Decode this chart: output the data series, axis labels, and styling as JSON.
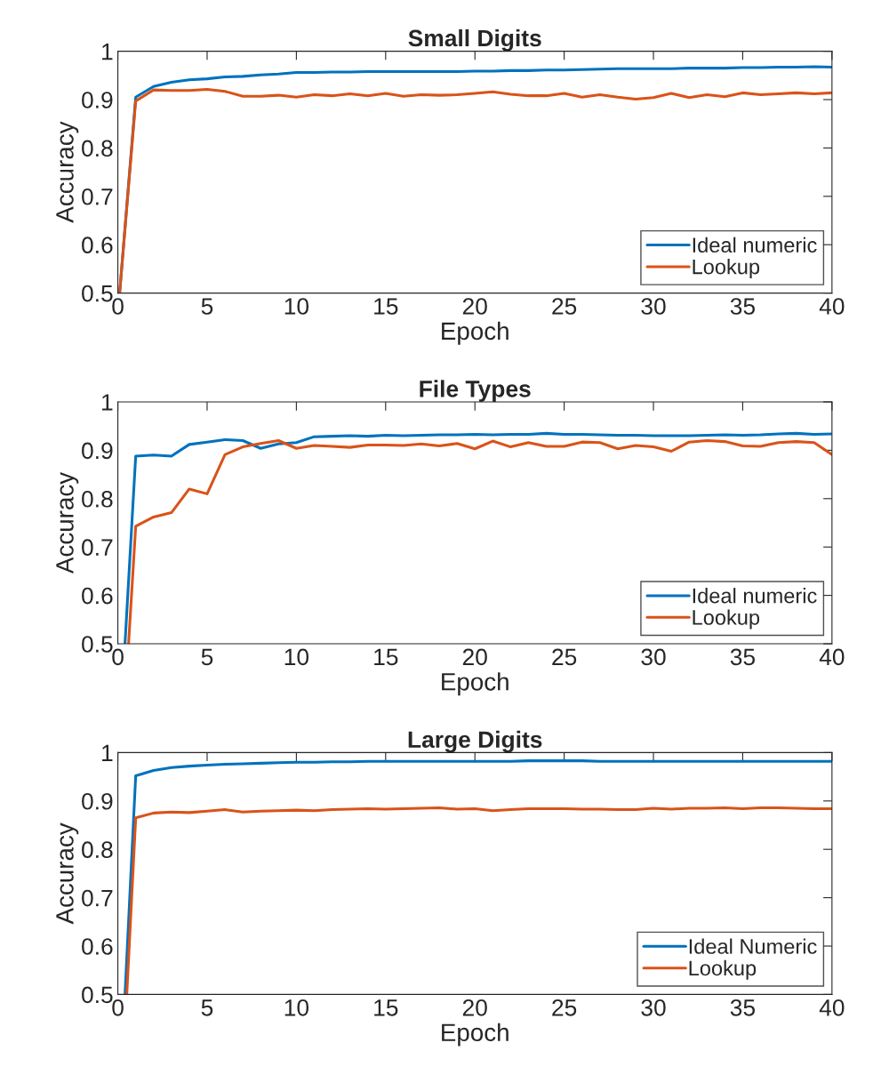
{
  "chart_data": [
    {
      "type": "line",
      "title": "Small Digits",
      "xlabel": "Epoch",
      "ylabel": "Accuracy",
      "xlim": [
        0,
        40
      ],
      "ylim": [
        0.5,
        1
      ],
      "xticks": [
        0,
        5,
        10,
        15,
        20,
        25,
        30,
        35,
        40
      ],
      "yticks": [
        0.5,
        0.6,
        0.7,
        0.8,
        0.9,
        1
      ],
      "grid": false,
      "legend": "bottom right",
      "series": [
        {
          "name": "Ideal numeric",
          "color": "#0072bd",
          "x": [
            0.1,
            1,
            2,
            3,
            4,
            5,
            6,
            7,
            8,
            9,
            10,
            11,
            12,
            13,
            14,
            15,
            16,
            17,
            18,
            19,
            20,
            21,
            22,
            23,
            24,
            25,
            26,
            27,
            28,
            29,
            30,
            31,
            32,
            33,
            34,
            35,
            36,
            37,
            38,
            39,
            40
          ],
          "values": [
            0.5,
            0.905,
            0.927,
            0.936,
            0.941,
            0.943,
            0.947,
            0.948,
            0.951,
            0.953,
            0.956,
            0.956,
            0.957,
            0.957,
            0.958,
            0.958,
            0.958,
            0.958,
            0.958,
            0.958,
            0.959,
            0.959,
            0.96,
            0.96,
            0.961,
            0.961,
            0.962,
            0.963,
            0.964,
            0.964,
            0.964,
            0.964,
            0.965,
            0.965,
            0.965,
            0.966,
            0.966,
            0.967,
            0.967,
            0.968,
            0.967
          ]
        },
        {
          "name": "Lookup",
          "color": "#d95319",
          "x": [
            0.1,
            1,
            2,
            3,
            4,
            5,
            6,
            7,
            8,
            9,
            10,
            11,
            12,
            13,
            14,
            15,
            16,
            17,
            18,
            19,
            20,
            21,
            22,
            23,
            24,
            25,
            26,
            27,
            28,
            29,
            30,
            31,
            32,
            33,
            34,
            35,
            36,
            37,
            38,
            39,
            40
          ],
          "values": [
            0.5,
            0.897,
            0.92,
            0.919,
            0.919,
            0.921,
            0.917,
            0.907,
            0.907,
            0.909,
            0.905,
            0.91,
            0.908,
            0.912,
            0.908,
            0.913,
            0.907,
            0.91,
            0.909,
            0.91,
            0.913,
            0.916,
            0.911,
            0.908,
            0.908,
            0.913,
            0.905,
            0.91,
            0.905,
            0.901,
            0.904,
            0.913,
            0.904,
            0.91,
            0.906,
            0.914,
            0.91,
            0.912,
            0.914,
            0.912,
            0.914
          ]
        }
      ]
    },
    {
      "type": "line",
      "title": "File Types",
      "xlabel": "Epoch",
      "ylabel": "Accuracy",
      "xlim": [
        0,
        40
      ],
      "ylim": [
        0.5,
        1
      ],
      "xticks": [
        0,
        5,
        10,
        15,
        20,
        25,
        30,
        35,
        40
      ],
      "yticks": [
        0.5,
        0.6,
        0.7,
        0.8,
        0.9,
        1
      ],
      "grid": false,
      "legend": "bottom right",
      "series": [
        {
          "name": "Ideal numeric",
          "color": "#0072bd",
          "x": [
            0.4,
            1,
            2,
            3,
            4,
            5,
            6,
            7,
            8,
            9,
            10,
            11,
            12,
            13,
            14,
            15,
            16,
            17,
            18,
            19,
            20,
            21,
            22,
            23,
            24,
            25,
            26,
            27,
            28,
            29,
            30,
            31,
            32,
            33,
            34,
            35,
            36,
            37,
            38,
            39,
            40
          ],
          "values": [
            0.5,
            0.888,
            0.89,
            0.888,
            0.912,
            0.917,
            0.922,
            0.92,
            0.904,
            0.913,
            0.916,
            0.928,
            0.929,
            0.93,
            0.929,
            0.931,
            0.93,
            0.931,
            0.932,
            0.932,
            0.933,
            0.932,
            0.933,
            0.933,
            0.935,
            0.933,
            0.933,
            0.932,
            0.931,
            0.931,
            0.93,
            0.93,
            0.93,
            0.931,
            0.932,
            0.931,
            0.932,
            0.934,
            0.935,
            0.933,
            0.934
          ]
        },
        {
          "name": "Lookup",
          "color": "#d95319",
          "x": [
            0.6,
            1,
            2,
            3,
            4,
            5,
            6,
            7,
            8,
            9,
            10,
            11,
            12,
            13,
            14,
            15,
            16,
            17,
            18,
            19,
            20,
            21,
            22,
            23,
            24,
            25,
            26,
            27,
            28,
            29,
            30,
            31,
            32,
            33,
            34,
            35,
            36,
            37,
            38,
            39,
            40
          ],
          "values": [
            0.5,
            0.743,
            0.762,
            0.771,
            0.82,
            0.81,
            0.891,
            0.907,
            0.914,
            0.92,
            0.904,
            0.91,
            0.908,
            0.906,
            0.911,
            0.911,
            0.91,
            0.913,
            0.909,
            0.914,
            0.903,
            0.919,
            0.907,
            0.916,
            0.908,
            0.908,
            0.917,
            0.916,
            0.903,
            0.91,
            0.907,
            0.898,
            0.917,
            0.92,
            0.918,
            0.909,
            0.908,
            0.916,
            0.918,
            0.916,
            0.891
          ]
        }
      ]
    },
    {
      "type": "line",
      "title": "Large Digits",
      "xlabel": "Epoch",
      "ylabel": "Accuracy",
      "xlim": [
        0,
        40
      ],
      "ylim": [
        0.5,
        1
      ],
      "xticks": [
        0,
        5,
        10,
        15,
        20,
        25,
        30,
        35,
        40
      ],
      "yticks": [
        0.5,
        0.6,
        0.7,
        0.8,
        0.9,
        1
      ],
      "grid": false,
      "legend": "bottom right",
      "series": [
        {
          "name": "Ideal Numeric",
          "color": "#0072bd",
          "x": [
            0.4,
            1,
            2,
            3,
            4,
            5,
            6,
            7,
            8,
            9,
            10,
            11,
            12,
            13,
            14,
            15,
            16,
            17,
            18,
            19,
            20,
            21,
            22,
            23,
            24,
            25,
            26,
            27,
            28,
            29,
            30,
            31,
            32,
            33,
            34,
            35,
            36,
            37,
            38,
            39,
            40
          ],
          "values": [
            0.5,
            0.952,
            0.963,
            0.969,
            0.972,
            0.974,
            0.976,
            0.977,
            0.978,
            0.979,
            0.98,
            0.98,
            0.981,
            0.981,
            0.982,
            0.982,
            0.982,
            0.982,
            0.982,
            0.982,
            0.982,
            0.982,
            0.982,
            0.983,
            0.983,
            0.983,
            0.983,
            0.982,
            0.982,
            0.982,
            0.982,
            0.982,
            0.982,
            0.982,
            0.982,
            0.982,
            0.982,
            0.982,
            0.982,
            0.982,
            0.982
          ]
        },
        {
          "name": "Lookup",
          "color": "#d95319",
          "x": [
            0.5,
            1,
            2,
            3,
            4,
            5,
            6,
            7,
            8,
            9,
            10,
            11,
            12,
            13,
            14,
            15,
            16,
            17,
            18,
            19,
            20,
            21,
            22,
            23,
            24,
            25,
            26,
            27,
            28,
            29,
            30,
            31,
            32,
            33,
            34,
            35,
            36,
            37,
            38,
            39,
            40
          ],
          "values": [
            0.5,
            0.865,
            0.875,
            0.877,
            0.876,
            0.879,
            0.882,
            0.877,
            0.879,
            0.88,
            0.881,
            0.88,
            0.882,
            0.883,
            0.884,
            0.883,
            0.884,
            0.885,
            0.886,
            0.883,
            0.884,
            0.88,
            0.882,
            0.884,
            0.884,
            0.884,
            0.883,
            0.883,
            0.882,
            0.882,
            0.885,
            0.883,
            0.885,
            0.885,
            0.886,
            0.884,
            0.886,
            0.886,
            0.885,
            0.884,
            0.884
          ]
        }
      ]
    }
  ]
}
